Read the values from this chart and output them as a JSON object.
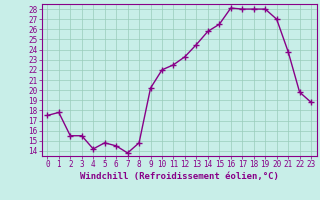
{
  "x": [
    0,
    1,
    2,
    3,
    4,
    5,
    6,
    7,
    8,
    9,
    10,
    11,
    12,
    13,
    14,
    15,
    16,
    17,
    18,
    19,
    20,
    21,
    22,
    23
  ],
  "y": [
    17.5,
    17.8,
    15.5,
    15.5,
    14.2,
    14.8,
    14.5,
    13.8,
    14.8,
    20.2,
    22.0,
    22.5,
    23.3,
    24.5,
    25.8,
    26.5,
    28.1,
    28.0,
    28.0,
    28.0,
    27.0,
    23.8,
    19.8,
    18.8
  ],
  "line_color": "#880088",
  "marker": "+",
  "markersize": 4,
  "markeredgewidth": 1.0,
  "linewidth": 1.0,
  "bg_color": "#c8eee8",
  "grid_color": "#99ccbb",
  "xlabel": "Windchill (Refroidissement éolien,°C)",
  "xlabel_color": "#880088",
  "xlim": [
    -0.5,
    23.5
  ],
  "ylim": [
    13.5,
    28.5
  ],
  "yticks": [
    14,
    15,
    16,
    17,
    18,
    19,
    20,
    21,
    22,
    23,
    24,
    25,
    26,
    27,
    28
  ],
  "xticks": [
    0,
    1,
    2,
    3,
    4,
    5,
    6,
    7,
    8,
    9,
    10,
    11,
    12,
    13,
    14,
    15,
    16,
    17,
    18,
    19,
    20,
    21,
    22,
    23
  ],
  "tick_color": "#880088",
  "tick_fontsize": 5.5,
  "xlabel_fontsize": 6.5,
  "spine_color": "#880088"
}
